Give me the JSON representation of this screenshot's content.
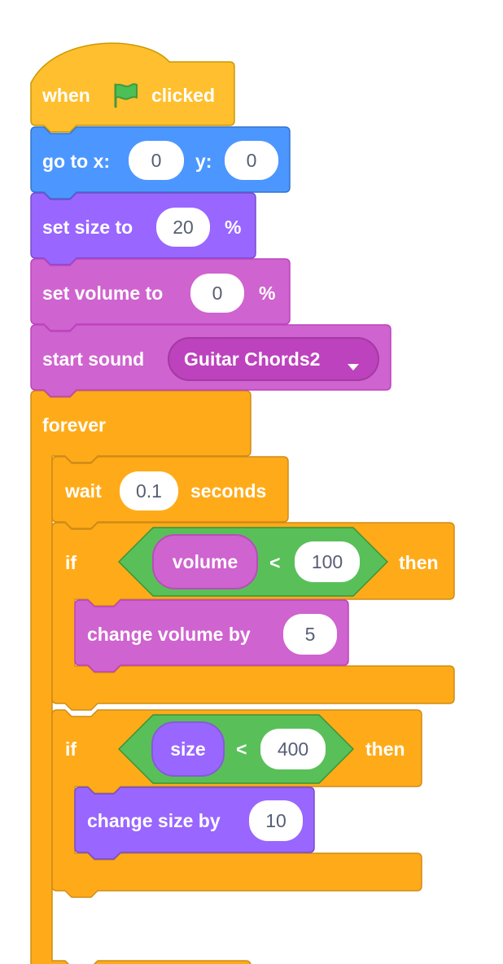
{
  "colors": {
    "events": "#ffbf2e",
    "motion": "#4c97ff",
    "looks": "#9966ff",
    "sound": "#cf63cf",
    "control": "#ffab19",
    "operators": "#59c059"
  },
  "blocks": {
    "when_flag": {
      "before": "when",
      "after": "clicked",
      "icon": "green-flag-icon"
    },
    "goto": {
      "label": "go to x:",
      "x_value": "0",
      "y_label": "y:",
      "y_value": "0"
    },
    "set_size": {
      "label": "set size to",
      "value": "20",
      "suffix": "%"
    },
    "set_volume": {
      "label": "set volume to",
      "value": "0",
      "suffix": "%"
    },
    "start_sound": {
      "label": "start sound",
      "sound": "Guitar Chords2",
      "icon": "dropdown-arrow-icon"
    },
    "forever": {
      "label": "forever",
      "icon": "loop-arrow-icon"
    },
    "wait": {
      "label": "wait",
      "value": "0.1",
      "suffix": "seconds"
    },
    "if_volume": {
      "label": "if",
      "then": "then",
      "reporter": "volume",
      "operator": "<",
      "value": "100",
      "body": {
        "label": "change volume by",
        "value": "5"
      }
    },
    "if_size": {
      "label": "if",
      "then": "then",
      "reporter": "size",
      "operator": "<",
      "value": "400",
      "body": {
        "label": "change size by",
        "value": "10"
      }
    }
  }
}
